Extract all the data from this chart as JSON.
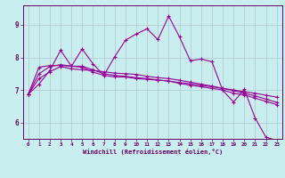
{
  "xlabel": "Windchill (Refroidissement éolien,°C)",
  "background_color": "#c8eef0",
  "axis_band_color": "#660066",
  "line_color": "#990099",
  "grid_color": "#b0c8cc",
  "xlim": [
    -0.5,
    23.5
  ],
  "ylim": [
    5.5,
    9.6
  ],
  "yticks": [
    6,
    7,
    8,
    9
  ],
  "xticks": [
    0,
    1,
    2,
    3,
    4,
    5,
    6,
    7,
    8,
    9,
    10,
    11,
    12,
    13,
    14,
    15,
    16,
    17,
    18,
    19,
    20,
    21,
    22,
    23
  ],
  "series": [
    [
      6.87,
      7.18,
      7.6,
      8.22,
      7.73,
      8.26,
      7.8,
      7.45,
      8.02,
      8.53,
      8.72,
      8.88,
      8.55,
      9.27,
      8.63,
      7.9,
      7.95,
      7.87,
      6.99,
      6.63,
      7.02,
      6.14,
      5.55,
      5.45
    ],
    [
      6.87,
      7.5,
      7.72,
      7.78,
      7.73,
      7.73,
      7.62,
      7.5,
      7.45,
      7.42,
      7.38,
      7.35,
      7.31,
      7.27,
      7.23,
      7.19,
      7.14,
      7.1,
      7.05,
      7.0,
      6.95,
      6.9,
      6.84,
      6.78
    ],
    [
      6.87,
      7.35,
      7.56,
      7.72,
      7.65,
      7.62,
      7.6,
      7.56,
      7.52,
      7.5,
      7.48,
      7.42,
      7.38,
      7.35,
      7.3,
      7.24,
      7.18,
      7.12,
      7.05,
      6.98,
      6.9,
      6.82,
      6.72,
      6.62
    ],
    [
      6.87,
      7.7,
      7.75,
      7.75,
      7.73,
      7.7,
      7.55,
      7.45,
      7.4,
      7.4,
      7.35,
      7.33,
      7.3,
      7.28,
      7.2,
      7.15,
      7.1,
      7.05,
      7.0,
      6.9,
      6.85,
      6.75,
      6.65,
      6.55
    ]
  ]
}
